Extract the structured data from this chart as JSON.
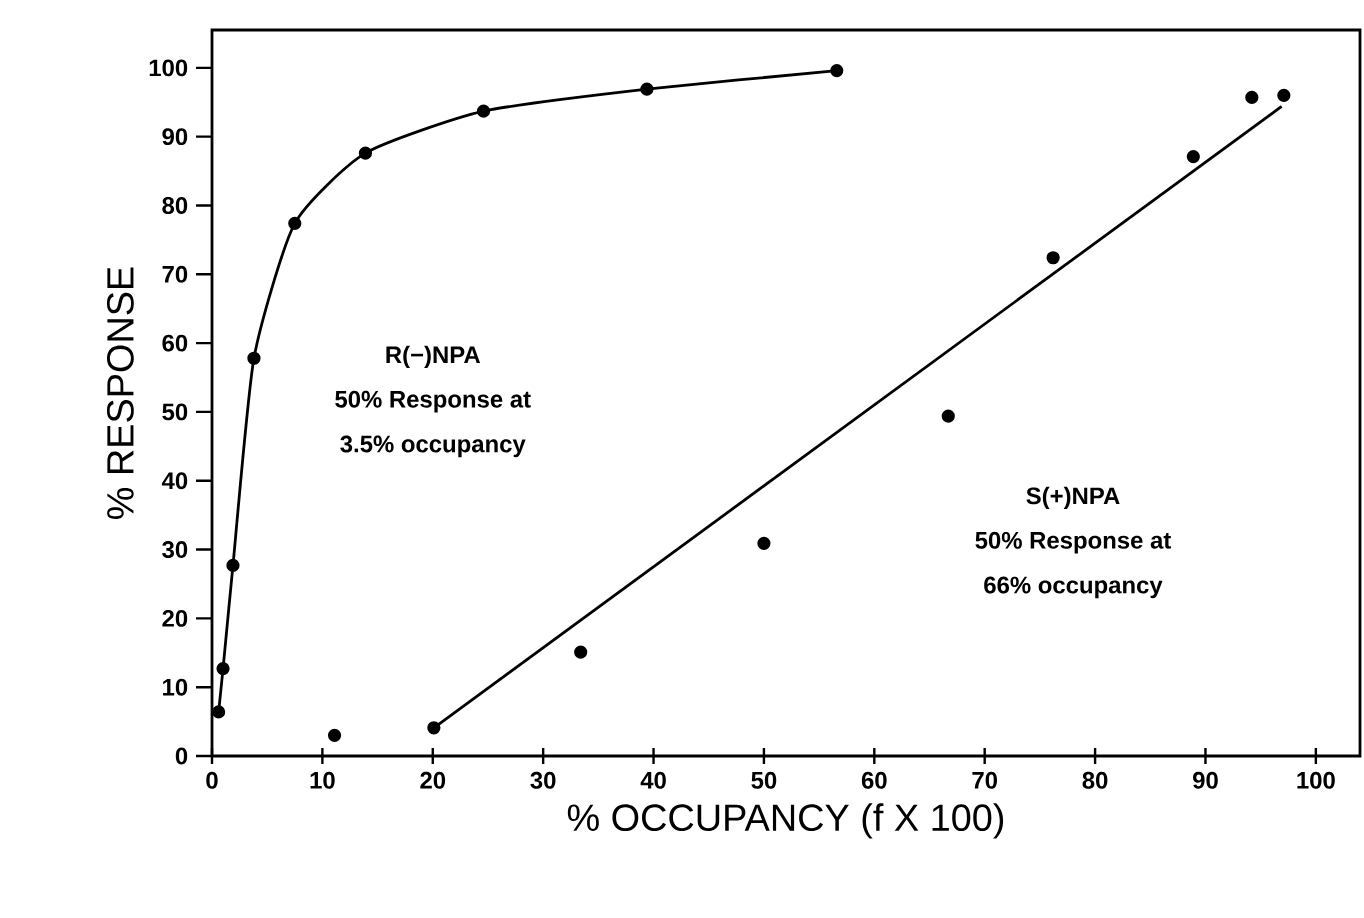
{
  "chart_data": {
    "type": "scatter",
    "xlabel": "% OCCUPANCY (f X 100)",
    "ylabel": "% RESPONSE",
    "xlim": [
      0,
      104
    ],
    "ylim": [
      0,
      105.5
    ],
    "xticks": [
      0,
      10,
      20,
      30,
      40,
      50,
      60,
      70,
      80,
      90,
      100
    ],
    "yticks": [
      0,
      10,
      20,
      30,
      40,
      50,
      60,
      70,
      80,
      90,
      100
    ],
    "marker": "circle",
    "grid": false,
    "series": [
      {
        "type": "line",
        "color": "#000000",
        "x": [
          0.6,
          1.0,
          1.9,
          3.8,
          7.5,
          13.9,
          24.6,
          39.4,
          56.6
        ],
        "values": [
          6.4,
          12.7,
          27.7,
          57.8,
          77.4,
          87.6,
          93.7,
          96.9,
          99.6
        ]
      },
      {
        "type": "scatter",
        "color": "#000000",
        "x": [
          11.1,
          20.1,
          33.4,
          50.0,
          66.7,
          76.2,
          88.9,
          94.2,
          97.1
        ],
        "values": [
          3.0,
          4.1,
          15.1,
          30.9,
          49.4,
          72.4,
          87.1,
          95.7,
          96.0
        ]
      },
      {
        "type": "line",
        "marker": "none",
        "color": "#000000",
        "x": [
          20.1,
          96.9
        ],
        "values": [
          4.1,
          94.4
        ]
      }
    ],
    "annotations": [
      "R(−)NPA",
      "50% Response at",
      "3.5% occupancy",
      "S(+)NPA",
      "50% Response at",
      "66% occupancy"
    ]
  }
}
